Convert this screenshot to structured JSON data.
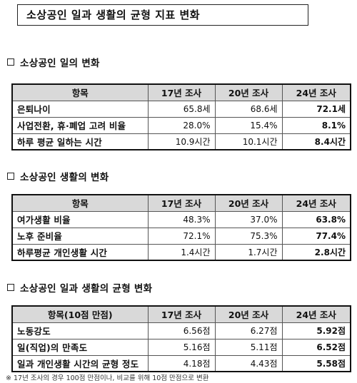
{
  "title": "소상공인 일과 생활의 균형 지표 변화",
  "sections": [
    {
      "heading": "소상공인 일의 변화",
      "headers": [
        "항목",
        "17년 조사",
        "20년 조사",
        "24년 조사"
      ],
      "rows": [
        [
          "은퇴나이",
          "65.8세",
          "68.6세",
          "72.1세"
        ],
        [
          "사업전환, 휴·폐업 고려 비율",
          "28.0%",
          "15.4%",
          "8.1%"
        ],
        [
          "하루 평균 일하는 시간",
          "10.9시간",
          "10.1시간",
          "8.4시간"
        ]
      ]
    },
    {
      "heading": "소상공인 생활의 변화",
      "headers": [
        "항목",
        "17년 조사",
        "20년 조사",
        "24년 조사"
      ],
      "rows": [
        [
          "여가생활 비율",
          "48.3%",
          "37.0%",
          "63.8%"
        ],
        [
          "노후 준비율",
          "72.1%",
          "75.3%",
          "77.4%"
        ],
        [
          "하루평균 개인생활 시간",
          "1.4시간",
          "1.7시간",
          "2.8시간"
        ]
      ]
    },
    {
      "heading": "소상공인 일과 생활의 균형 변화",
      "headers": [
        "항목(10점 만점)",
        "17년 조사",
        "20년 조사",
        "24년 조사"
      ],
      "rows": [
        [
          "노동강도",
          "6.56점",
          "6.27점",
          "5.92점"
        ],
        [
          "일(직업)의 만족도",
          "5.16점",
          "5.11점",
          "6.52점"
        ],
        [
          "일과 개인생활 시간의 균형 정도",
          "4.18점",
          "4.43점",
          "5.58점"
        ]
      ]
    }
  ],
  "footnote": "※ 17년 조사의 경우 100점 만점이나, 비교를 위해 10점 만점으로 변환"
}
